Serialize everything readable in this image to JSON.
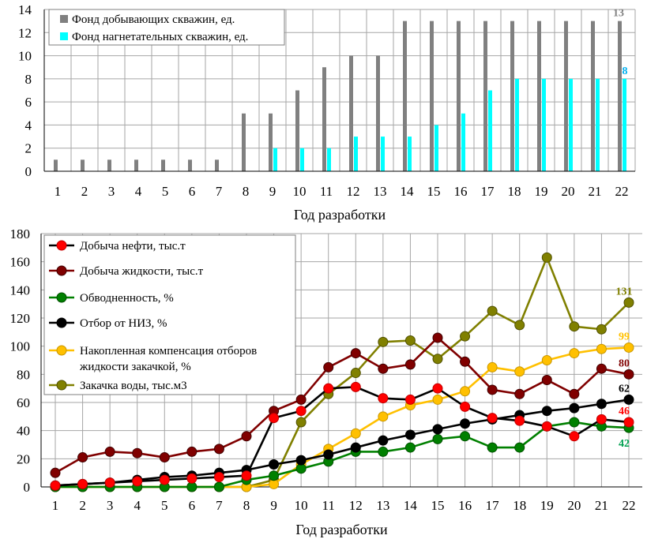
{
  "chart_data": [
    {
      "type": "bar",
      "title": "",
      "xlabel": "Год разработки",
      "ylabel": "",
      "ylim": [
        0,
        14
      ],
      "yticks": [
        0,
        2,
        4,
        6,
        8,
        10,
        12,
        14
      ],
      "grid": true,
      "legend_position": "top-left",
      "categories": [
        "1",
        "2",
        "3",
        "4",
        "5",
        "6",
        "7",
        "8",
        "9",
        "10",
        "11",
        "12",
        "13",
        "14",
        "15",
        "16",
        "17",
        "18",
        "19",
        "20",
        "21",
        "22"
      ],
      "series": [
        {
          "name": "Фонд добывающих скважин, ед.",
          "color": "#808080",
          "values": [
            1,
            1,
            1,
            1,
            1,
            1,
            1,
            5,
            5,
            7,
            9,
            10,
            10,
            13,
            13,
            13,
            13,
            13,
            13,
            13,
            13,
            13
          ]
        },
        {
          "name": "Фонд нагнетательных скважин, ед.",
          "color": "#00ffff",
          "values": [
            0,
            0,
            0,
            0,
            0,
            0,
            0,
            0,
            2,
            2,
            2,
            3,
            3,
            3,
            4,
            5,
            7,
            8,
            8,
            8,
            8,
            8
          ]
        }
      ],
      "end_labels": [
        {
          "series": 0,
          "text": "13",
          "color": "#808080"
        },
        {
          "series": 1,
          "text": "8",
          "color": "#00b0f0"
        }
      ]
    },
    {
      "type": "line",
      "title": "",
      "xlabel": "Год разработки",
      "ylabel": "",
      "ylim": [
        0,
        180
      ],
      "yticks": [
        0,
        20,
        40,
        60,
        80,
        100,
        120,
        140,
        160,
        180
      ],
      "grid": true,
      "legend_position": "top-left",
      "x": [
        1,
        2,
        3,
        4,
        5,
        6,
        7,
        8,
        9,
        10,
        11,
        12,
        13,
        14,
        15,
        16,
        17,
        18,
        19,
        20,
        21,
        22
      ],
      "series": [
        {
          "name": "Добыча нефти, тыс.т",
          "color": "#000000",
          "marker": "#ff0000",
          "marker_edge": "#c00000",
          "values": [
            1,
            2,
            3,
            4,
            5,
            6,
            7,
            8,
            49,
            54,
            70,
            71,
            63,
            62,
            70,
            57,
            49,
            47,
            43,
            36,
            48,
            46
          ]
        },
        {
          "name": "Добыча жидкости, тыс.т",
          "color": "#800000",
          "marker": "#800000",
          "marker_edge": "#400000",
          "values": [
            10,
            21,
            25,
            24,
            21,
            25,
            27,
            36,
            54,
            62,
            85,
            95,
            84,
            87,
            106,
            89,
            69,
            66,
            76,
            66,
            84,
            80
          ]
        },
        {
          "name": "Обводненность, %",
          "color": "#008000",
          "marker": "#008000",
          "marker_edge": "#005000",
          "values": [
            0,
            0,
            0,
            0,
            0,
            0,
            0,
            5,
            8,
            13,
            18,
            25,
            25,
            28,
            34,
            36,
            28,
            28,
            43,
            46,
            43,
            42
          ]
        },
        {
          "name": "Отбор от НИЗ, %",
          "color": "#000000",
          "marker": "#000000",
          "marker_edge": "#000000",
          "values": [
            1,
            2,
            3,
            5,
            7,
            8,
            10,
            12,
            16,
            19,
            23,
            28,
            33,
            37,
            41,
            45,
            48,
            51,
            54,
            56,
            59,
            62
          ]
        },
        {
          "name": "Накопленная компенсация отборов жидкости закачкой, %",
          "color": "#ffc000",
          "marker": "#ffc000",
          "marker_edge": "#c89600",
          "values": [
            0,
            0,
            0,
            0,
            0,
            0,
            0,
            0,
            2,
            16,
            27,
            38,
            50,
            58,
            62,
            68,
            85,
            82,
            90,
            95,
            98,
            99
          ]
        },
        {
          "name": "Закачка воды, тыс.м3",
          "color": "#808000",
          "marker": "#808000",
          "marker_edge": "#505000",
          "values": [
            0,
            0,
            0,
            0,
            0,
            0,
            0,
            0,
            5,
            46,
            66,
            81,
            103,
            104,
            91,
            107,
            125,
            115,
            163,
            114,
            112,
            131
          ]
        }
      ],
      "legend_lines": [
        [
          "Добыча нефти, тыс.т"
        ],
        [
          "Добыча жидкости, тыс.т"
        ],
        [
          "Обводненность, %"
        ],
        [
          "Отбор от НИЗ, %"
        ],
        [
          "Накопленная компенсация отборов",
          "жидкости закачкой, %"
        ],
        [
          "Закачка воды, тыс.м3"
        ]
      ],
      "end_labels": [
        {
          "series": 5,
          "text": "131",
          "color": "#808000"
        },
        {
          "series": 4,
          "text": "99",
          "color": "#ffc000"
        },
        {
          "series": 1,
          "text": "80",
          "color": "#800000"
        },
        {
          "series": 3,
          "text": "62",
          "color": "#000000"
        },
        {
          "series": 0,
          "text": "46",
          "color": "#ff0000"
        },
        {
          "series": 2,
          "text": "42",
          "color": "#00a050"
        }
      ]
    }
  ]
}
